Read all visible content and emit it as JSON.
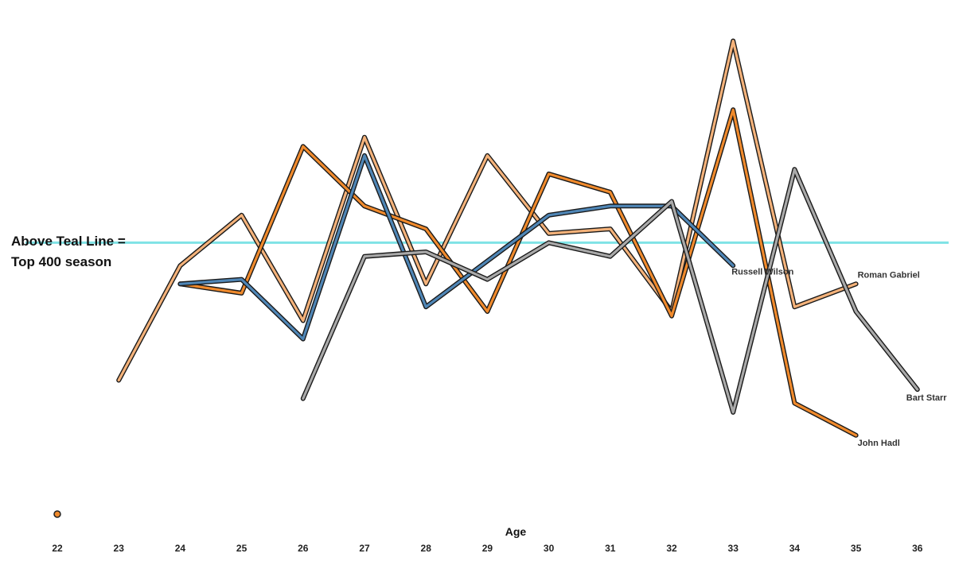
{
  "annotation": {
    "line1": "Above Teal Line =",
    "line2": "Top 400 season"
  },
  "chart_data": {
    "type": "line",
    "xlabel": "Age",
    "ylabel": "",
    "x_ticks": [
      "22",
      "23",
      "24",
      "25",
      "26",
      "27",
      "28",
      "29",
      "30",
      "31",
      "32",
      "33",
      "34",
      "35",
      "36"
    ],
    "xlim": [
      22,
      36
    ],
    "ylim": [
      0,
      100
    ],
    "grid": false,
    "threshold": {
      "value": 54,
      "color": "#7fe3e6"
    },
    "legend_marker_color": "#f08a2c",
    "series": [
      {
        "name": "Roman Gabriel",
        "color": "#f4b27a",
        "x": [
          23,
          24,
          25,
          26,
          27,
          28,
          29,
          30,
          31,
          32,
          33,
          34,
          35
        ],
        "y": [
          24,
          49,
          60,
          37,
          77,
          45,
          73,
          56,
          57,
          39,
          98,
          40,
          45
        ]
      },
      {
        "name": "John Hadl",
        "color": "#f08a2c",
        "x": [
          24,
          25,
          26,
          27,
          28,
          29,
          30,
          31,
          32,
          33,
          34,
          35
        ],
        "y": [
          45,
          43,
          75,
          62,
          57,
          39,
          69,
          65,
          38,
          83,
          19,
          12
        ]
      },
      {
        "name": "Russell Wilson",
        "color": "#4f86b6",
        "x": [
          24,
          25,
          26,
          27,
          28,
          29,
          30,
          31,
          32,
          33
        ],
        "y": [
          45,
          46,
          33,
          73,
          40,
          50,
          60,
          62,
          62,
          49
        ]
      },
      {
        "name": "Bart Starr",
        "color": "#a9a9a9",
        "x": [
          26,
          27,
          28,
          29,
          30,
          31,
          32,
          33,
          34,
          35,
          36
        ],
        "y": [
          20,
          51,
          52,
          46,
          54,
          51,
          63,
          17,
          70,
          39,
          22
        ]
      }
    ]
  }
}
